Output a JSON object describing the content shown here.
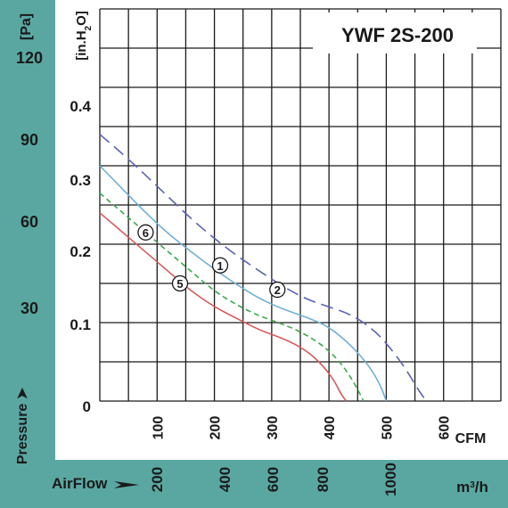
{
  "chart_data": {
    "type": "line",
    "title": "YWF 2S-200",
    "left_unit": "[Pa]",
    "left_ticks": [
      "120",
      "90",
      "60",
      "30"
    ],
    "left_label": "Pressure",
    "inner_unit_pre": "[in.H",
    "inner_unit_sub": "2",
    "inner_unit_post": "O]",
    "y_ticks": [
      "0.4",
      "0.3",
      "0.2",
      "0.1",
      "0"
    ],
    "cfm_ticks": [
      "100",
      "200",
      "300",
      "400",
      "500",
      "600"
    ],
    "cfm_unit": "CFM",
    "m3h_ticks": [
      "200",
      "400",
      "600",
      "800",
      "1000"
    ],
    "m3h_unit_pre": "m",
    "m3h_unit_sup": "3",
    "m3h_unit_post": "/h",
    "airflow_label": "AirFlow",
    "xlabel": "",
    "ylabel": "",
    "xlim": [
      0,
      700
    ],
    "ylim": [
      0,
      0.5
    ],
    "x_unit": "CFM",
    "y_unit": "in.H2O",
    "grid": true,
    "colors": {
      "background": "#5aa7a2",
      "plot": "#ffffff",
      "grid": "#1a1a1a",
      "text": "#1a1a1a"
    },
    "series": [
      {
        "color": "#d9595a",
        "dash": "",
        "x": [
          0,
          40,
          80,
          120,
          160,
          200,
          240,
          280,
          320,
          360,
          390,
          410,
          420,
          430
        ],
        "y": [
          0.24,
          0.215,
          0.19,
          0.165,
          0.14,
          0.12,
          0.105,
          0.09,
          0.08,
          0.065,
          0.045,
          0.025,
          0.01,
          0
        ]
      },
      {
        "color": "#3aa84a",
        "dash": "6,4",
        "x": [
          0,
          40,
          80,
          120,
          160,
          200,
          240,
          280,
          320,
          360,
          400,
          430,
          450,
          460
        ],
        "y": [
          0.265,
          0.24,
          0.215,
          0.19,
          0.165,
          0.14,
          0.122,
          0.108,
          0.098,
          0.085,
          0.065,
          0.04,
          0.015,
          0
        ]
      },
      {
        "color": "#6fb0d8",
        "dash": "",
        "x": [
          0,
          40,
          80,
          120,
          160,
          200,
          240,
          280,
          320,
          360,
          400,
          440,
          470,
          490,
          500
        ],
        "y": [
          0.3,
          0.27,
          0.24,
          0.213,
          0.19,
          0.168,
          0.148,
          0.13,
          0.117,
          0.107,
          0.095,
          0.07,
          0.045,
          0.02,
          0
        ]
      },
      {
        "color": "#5b62b4",
        "dash": "14,7",
        "x": [
          0,
          40,
          80,
          120,
          160,
          200,
          240,
          280,
          320,
          360,
          400,
          440,
          480,
          510,
          535,
          555,
          570
        ],
        "y": [
          0.34,
          0.315,
          0.288,
          0.26,
          0.232,
          0.207,
          0.185,
          0.165,
          0.146,
          0.13,
          0.12,
          0.11,
          0.09,
          0.065,
          0.04,
          0.015,
          0
        ]
      }
    ],
    "markers": [
      {
        "label": "1",
        "x": 210,
        "y": 0.173
      },
      {
        "label": "2",
        "x": 310,
        "y": 0.142
      },
      {
        "label": "5",
        "x": 140,
        "y": 0.15
      },
      {
        "label": "6",
        "x": 80,
        "y": 0.215
      }
    ]
  }
}
